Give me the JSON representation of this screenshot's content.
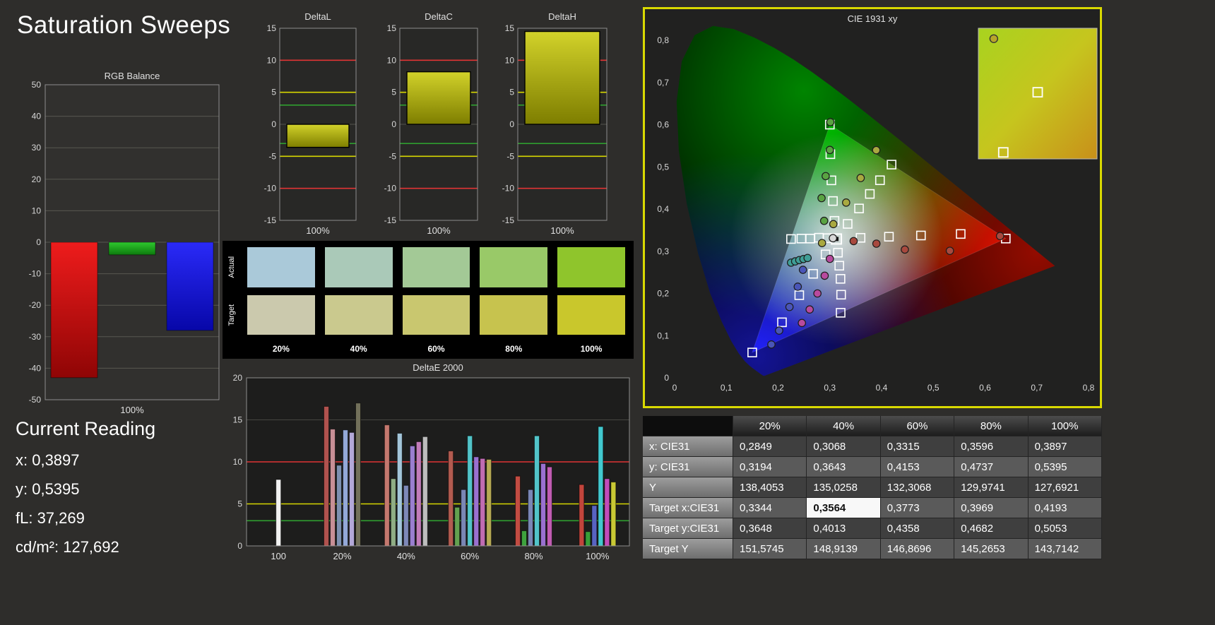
{
  "page": {
    "title": "Saturation Sweeps",
    "background": "#2e2d2b",
    "panel_border": "#d9d900"
  },
  "current_reading": {
    "title": "Current Reading",
    "lines": [
      "x: 0,3897",
      "y: 0,5395",
      "fL: 37,269",
      "cd/m²: 127,692"
    ]
  },
  "swatch_panel": {
    "row_labels": [
      "Actual",
      "Target"
    ],
    "col_labels": [
      "20%",
      "40%",
      "60%",
      "80%",
      "100%"
    ],
    "actual_colors": [
      "#aac9d9",
      "#aac9b8",
      "#a3c996",
      "#99c968",
      "#8fc52c"
    ],
    "target_colors": [
      "#cbc9ad",
      "#cac98e",
      "#c9c76f",
      "#c7c34e",
      "#c9c72c"
    ]
  },
  "chart_data": [
    {
      "id": "rgb_balance",
      "type": "bar",
      "title": "RGB Balance",
      "xlabel": "100%",
      "ylim": [
        -50,
        50
      ],
      "yticks": [
        50,
        40,
        30,
        20,
        10,
        0,
        -10,
        -20,
        -30,
        -40,
        -50
      ],
      "bars": [
        {
          "name": "red",
          "value": -43,
          "color": "#ee1c1c",
          "color_dark": "#8f0505"
        },
        {
          "name": "green",
          "value": -4,
          "color": "#2ec82e",
          "color_dark": "#0d7a0d"
        },
        {
          "name": "blue",
          "value": -28,
          "color": "#2a2af8",
          "color_dark": "#0707a8"
        }
      ]
    },
    {
      "id": "deltaL",
      "type": "bar",
      "title": "DeltaL",
      "xlabel": "100%",
      "ylim": [
        -15,
        15
      ],
      "yticks": [
        15,
        10,
        5,
        0,
        -5,
        -10,
        -15
      ],
      "ref_lines": [
        {
          "v": 10,
          "color": "#e03434"
        },
        {
          "v": 5,
          "color": "#d6d600"
        },
        {
          "v": 3,
          "color": "#2f9e2f"
        },
        {
          "v": -3,
          "color": "#2f9e2f"
        },
        {
          "v": -5,
          "color": "#d6d600"
        },
        {
          "v": -10,
          "color": "#e03434"
        }
      ],
      "value": -3.6,
      "bar_color": "#d2d22a",
      "bar_color_dark": "#7e7e00"
    },
    {
      "id": "deltaC",
      "type": "bar",
      "title": "DeltaC",
      "xlabel": "100%",
      "ylim": [
        -15,
        15
      ],
      "yticks": [
        15,
        10,
        5,
        0,
        -5,
        -10,
        -15
      ],
      "ref_lines": [
        {
          "v": 10,
          "color": "#e03434"
        },
        {
          "v": 5,
          "color": "#d6d600"
        },
        {
          "v": 3,
          "color": "#2f9e2f"
        },
        {
          "v": -3,
          "color": "#2f9e2f"
        },
        {
          "v": -5,
          "color": "#d6d600"
        },
        {
          "v": -10,
          "color": "#e03434"
        }
      ],
      "value": 8.2,
      "bar_color": "#d2d22a",
      "bar_color_dark": "#7e7e00"
    },
    {
      "id": "deltaH",
      "type": "bar",
      "title": "DeltaH",
      "xlabel": "100%",
      "ylim": [
        -15,
        15
      ],
      "yticks": [
        15,
        10,
        5,
        0,
        -5,
        -10,
        -15
      ],
      "ref_lines": [
        {
          "v": 10,
          "color": "#e03434"
        },
        {
          "v": 5,
          "color": "#d6d600"
        },
        {
          "v": 3,
          "color": "#2f9e2f"
        },
        {
          "v": -3,
          "color": "#2f9e2f"
        },
        {
          "v": -5,
          "color": "#d6d600"
        },
        {
          "v": -10,
          "color": "#e03434"
        }
      ],
      "value": 14.5,
      "bar_color": "#d2d22a",
      "bar_color_dark": "#7e7e00"
    },
    {
      "id": "deltae2000",
      "type": "bar",
      "title": "DeltaE 2000",
      "ylim": [
        0,
        20
      ],
      "yticks": [
        20,
        15,
        10,
        5,
        0
      ],
      "ref_lines": [
        {
          "v": 10,
          "color": "#e03434"
        },
        {
          "v": 5,
          "color": "#d6d600"
        },
        {
          "v": 3,
          "color": "#2f9e2f"
        }
      ],
      "groups": [
        {
          "label": "100",
          "bars": [
            {
              "value": 7.9,
              "color": "#f2f2f2"
            }
          ]
        },
        {
          "label": "20%",
          "bars": [
            {
              "value": 16.6,
              "color": "#b0524e"
            },
            {
              "value": 13.9,
              "color": "#c78f96"
            },
            {
              "value": 9.6,
              "color": "#7d90b0"
            },
            {
              "value": 13.8,
              "color": "#93a8d8"
            },
            {
              "value": 13.5,
              "color": "#b3a8d8"
            },
            {
              "value": 17.0,
              "color": "#72705a"
            }
          ]
        },
        {
          "label": "40%",
          "bars": [
            {
              "value": 14.4,
              "color": "#c4786e"
            },
            {
              "value": 8.0,
              "color": "#8fae85"
            },
            {
              "value": 13.4,
              "color": "#a3c6da"
            },
            {
              "value": 7.2,
              "color": "#7d88b8"
            },
            {
              "value": 11.9,
              "color": "#9a7ed0"
            },
            {
              "value": 12.4,
              "color": "#c27cba"
            },
            {
              "value": 13.0,
              "color": "#bdbdbd"
            }
          ]
        },
        {
          "label": "60%",
          "bars": [
            {
              "value": 11.3,
              "color": "#b25b50"
            },
            {
              "value": 4.6,
              "color": "#63a150"
            },
            {
              "value": 6.7,
              "color": "#7a86b5"
            },
            {
              "value": 13.1,
              "color": "#52c4c9"
            },
            {
              "value": 10.6,
              "color": "#9a70d0"
            },
            {
              "value": 10.4,
              "color": "#c06cb2"
            },
            {
              "value": 10.3,
              "color": "#b5a954"
            }
          ]
        },
        {
          "label": "80%",
          "bars": [
            {
              "value": 8.3,
              "color": "#c24c42"
            },
            {
              "value": 1.8,
              "color": "#3ea23e"
            },
            {
              "value": 6.7,
              "color": "#7a86b5"
            },
            {
              "value": 13.1,
              "color": "#52c4c9"
            },
            {
              "value": 9.8,
              "color": "#9a70d0"
            },
            {
              "value": 9.4,
              "color": "#c05cb2"
            }
          ]
        },
        {
          "label": "100%",
          "bars": [
            {
              "value": 7.3,
              "color": "#c2453c"
            },
            {
              "value": 1.7,
              "color": "#38a038"
            },
            {
              "value": 4.8,
              "color": "#5863c2"
            },
            {
              "value": 14.2,
              "color": "#42c9cf"
            },
            {
              "value": 8.0,
              "color": "#c24cba"
            },
            {
              "value": 7.6,
              "color": "#c9c934"
            }
          ]
        }
      ]
    },
    {
      "id": "cie1931",
      "type": "scatter",
      "title": "CIE 1931 xy",
      "xlim": [
        0,
        0.8
      ],
      "ylim": [
        0,
        0.8
      ],
      "xtick_labels": [
        "0",
        "0,1",
        "0,2",
        "0,3",
        "0,4",
        "0,5",
        "0,6",
        "0,7",
        "0,8"
      ],
      "ytick_labels": [
        "0",
        "0,1",
        "0,2",
        "0,3",
        "0,4",
        "0,5",
        "0,6",
        "0,7",
        "0,8"
      ],
      "gamut_triangle": [
        [
          0.64,
          0.33
        ],
        [
          0.3,
          0.6
        ],
        [
          0.15,
          0.06
        ]
      ],
      "targets": [
        [
          0.3127,
          0.329
        ],
        [
          0.3594,
          0.3318
        ],
        [
          0.4142,
          0.3344
        ],
        [
          0.4761,
          0.3373
        ],
        [
          0.5529,
          0.3409
        ],
        [
          0.64,
          0.33
        ],
        [
          0.309,
          0.372
        ],
        [
          0.306,
          0.419
        ],
        [
          0.303,
          0.468
        ],
        [
          0.301,
          0.53
        ],
        [
          0.3,
          0.6
        ],
        [
          0.2918,
          0.2925
        ],
        [
          0.2677,
          0.2465
        ],
        [
          0.2409,
          0.1958
        ],
        [
          0.2075,
          0.1316
        ],
        [
          0.15,
          0.06
        ],
        [
          0.2958,
          0.331
        ],
        [
          0.279,
          0.332
        ],
        [
          0.262,
          0.33
        ],
        [
          0.245,
          0.33
        ],
        [
          0.225,
          0.329
        ],
        [
          0.3157,
          0.2966
        ],
        [
          0.3183,
          0.2657
        ],
        [
          0.3206,
          0.2346
        ],
        [
          0.3218,
          0.197
        ],
        [
          0.3209,
          0.1542
        ],
        [
          0.3344,
          0.3648
        ],
        [
          0.3564,
          0.4013
        ],
        [
          0.3773,
          0.4358
        ],
        [
          0.3969,
          0.4682
        ],
        [
          0.4193,
          0.5053
        ]
      ],
      "points": [
        {
          "x": 0.2849,
          "y": 0.3194,
          "color": "#a9a940"
        },
        {
          "x": 0.3068,
          "y": 0.3643,
          "color": "#a9a940"
        },
        {
          "x": 0.3315,
          "y": 0.4153,
          "color": "#a9a940"
        },
        {
          "x": 0.3596,
          "y": 0.4737,
          "color": "#a9a940"
        },
        {
          "x": 0.3897,
          "y": 0.5395,
          "color": "#a9a940"
        },
        {
          "x": 0.289,
          "y": 0.372,
          "color": "#5aa342"
        },
        {
          "x": 0.284,
          "y": 0.426,
          "color": "#5aa342"
        },
        {
          "x": 0.292,
          "y": 0.478,
          "color": "#5aa342"
        },
        {
          "x": 0.3,
          "y": 0.54,
          "color": "#5aa342"
        },
        {
          "x": 0.301,
          "y": 0.606,
          "color": "#5aa342"
        },
        {
          "x": 0.346,
          "y": 0.324,
          "color": "#a8493e"
        },
        {
          "x": 0.39,
          "y": 0.318,
          "color": "#a8493e"
        },
        {
          "x": 0.445,
          "y": 0.304,
          "color": "#a8493e"
        },
        {
          "x": 0.532,
          "y": 0.301,
          "color": "#a8493e"
        },
        {
          "x": 0.629,
          "y": 0.336,
          "color": "#a8493e"
        },
        {
          "x": 0.225,
          "y": 0.273,
          "color": "#3f9e96"
        },
        {
          "x": 0.233,
          "y": 0.276,
          "color": "#3f9e96"
        },
        {
          "x": 0.241,
          "y": 0.279,
          "color": "#3f9e96"
        },
        {
          "x": 0.249,
          "y": 0.2815,
          "color": "#3f9e96"
        },
        {
          "x": 0.257,
          "y": 0.284,
          "color": "#3f9e96"
        },
        {
          "x": 0.187,
          "y": 0.079,
          "color": "#4a55b8"
        },
        {
          "x": 0.202,
          "y": 0.112,
          "color": "#4a55b8"
        },
        {
          "x": 0.222,
          "y": 0.168,
          "color": "#4a55b8"
        },
        {
          "x": 0.238,
          "y": 0.216,
          "color": "#4a55b8"
        },
        {
          "x": 0.248,
          "y": 0.256,
          "color": "#4a55b8"
        },
        {
          "x": 0.246,
          "y": 0.13,
          "color": "#b84a9e"
        },
        {
          "x": 0.261,
          "y": 0.162,
          "color": "#b84a9e"
        },
        {
          "x": 0.276,
          "y": 0.2,
          "color": "#b84a9e"
        },
        {
          "x": 0.29,
          "y": 0.242,
          "color": "#b84a9e"
        },
        {
          "x": 0.3,
          "y": 0.282,
          "color": "#b84a9e"
        },
        {
          "x": 0.306,
          "y": 0.331,
          "color": "#d8d8d8"
        }
      ],
      "inset": {
        "gradient": [
          "#a8d31f",
          "#c6c51e",
          "#c8901a"
        ],
        "circle": {
          "fx": 0.13,
          "fy": 0.08,
          "color": "#b7a62a"
        },
        "squares": [
          {
            "fx": 0.5,
            "fy": 0.49
          },
          {
            "fx": 0.21,
            "fy": 0.95
          }
        ]
      }
    },
    {
      "id": "sweep_table",
      "type": "table",
      "col_headers": [
        "20%",
        "40%",
        "60%",
        "80%",
        "100%"
      ],
      "rows": [
        {
          "label": "x: CIE31",
          "values": [
            "0,2849",
            "0,3068",
            "0,3315",
            "0,3596",
            "0,3897"
          ]
        },
        {
          "label": "y: CIE31",
          "values": [
            "0,3194",
            "0,3643",
            "0,4153",
            "0,4737",
            "0,5395"
          ]
        },
        {
          "label": "Y",
          "values": [
            "138,4053",
            "135,0258",
            "132,3068",
            "129,9741",
            "127,6921"
          ]
        },
        {
          "label": "Target x:CIE31",
          "values": [
            "0,3344",
            "0,3564",
            "0,3773",
            "0,3969",
            "0,4193"
          ]
        },
        {
          "label": "Target y:CIE31",
          "values": [
            "0,3648",
            "0,4013",
            "0,4358",
            "0,4682",
            "0,5053"
          ]
        },
        {
          "label": "Target Y",
          "values": [
            "151,5745",
            "148,9139",
            "146,8696",
            "145,2653",
            "143,7142"
          ]
        }
      ],
      "highlight": {
        "row": 3,
        "col": 1
      }
    }
  ]
}
